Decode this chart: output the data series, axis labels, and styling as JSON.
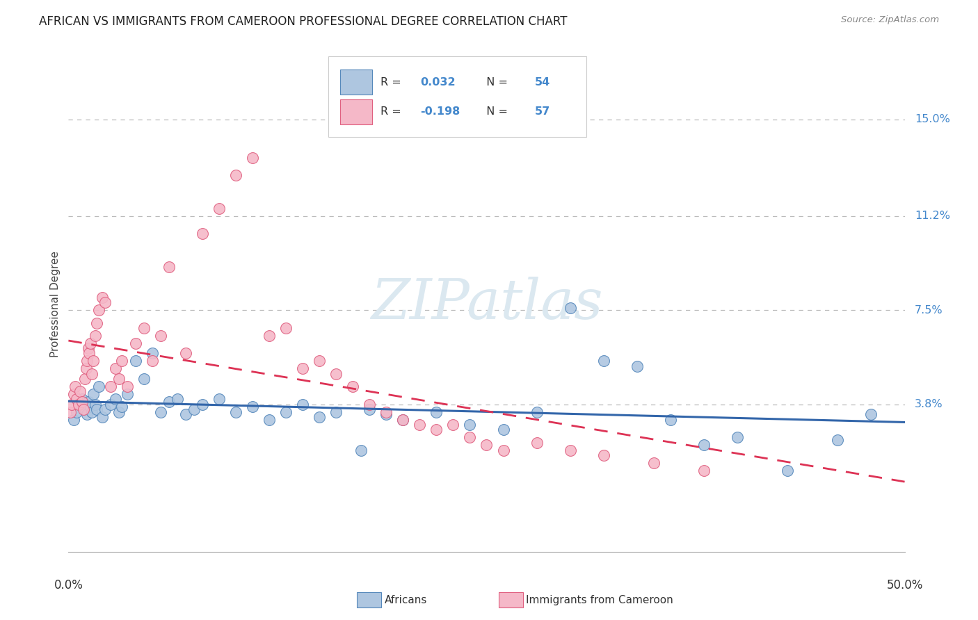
{
  "title": "AFRICAN VS IMMIGRANTS FROM CAMEROON PROFESSIONAL DEGREE CORRELATION CHART",
  "source": "Source: ZipAtlas.com",
  "ylabel": "Professional Degree",
  "ytick_labels": [
    "15.0%",
    "11.2%",
    "7.5%",
    "3.8%"
  ],
  "ytick_values": [
    15.0,
    11.2,
    7.5,
    3.8
  ],
  "xtick_labels": [
    "0.0%",
    "50.0%"
  ],
  "xlim": [
    0.0,
    50.0
  ],
  "ylim": [
    -2.0,
    17.5
  ],
  "africans_color": "#aec6e0",
  "africans_edge": "#5588bb",
  "cameroon_color": "#f5b8c8",
  "cameroon_edge": "#e06080",
  "trend_africans_color": "#3366aa",
  "trend_cameroon_color": "#dd3355",
  "watermark_color": "#dbe8f0",
  "R_africans": 0.032,
  "N_africans": 54,
  "R_cameroon": -0.198,
  "N_cameroon": 57,
  "africans_x": [
    0.3,
    0.5,
    0.7,
    0.8,
    1.0,
    1.1,
    1.2,
    1.3,
    1.4,
    1.5,
    1.6,
    1.7,
    1.8,
    2.0,
    2.2,
    2.5,
    2.8,
    3.0,
    3.2,
    3.5,
    4.0,
    4.5,
    5.0,
    5.5,
    6.0,
    6.5,
    7.0,
    7.5,
    8.0,
    9.0,
    10.0,
    11.0,
    12.0,
    13.0,
    14.0,
    15.0,
    16.0,
    17.5,
    18.0,
    19.0,
    20.0,
    22.0,
    24.0,
    26.0,
    28.0,
    30.0,
    32.0,
    34.0,
    36.0,
    38.0,
    40.0,
    43.0,
    46.0,
    48.0
  ],
  "africans_y": [
    3.2,
    3.5,
    3.8,
    4.0,
    3.6,
    3.4,
    3.9,
    3.7,
    3.5,
    4.2,
    3.8,
    3.6,
    4.5,
    3.3,
    3.6,
    3.8,
    4.0,
    3.5,
    3.7,
    4.2,
    5.5,
    4.8,
    5.8,
    3.5,
    3.9,
    4.0,
    3.4,
    3.6,
    3.8,
    4.0,
    3.5,
    3.7,
    3.2,
    3.5,
    3.8,
    3.3,
    3.5,
    2.0,
    3.6,
    3.4,
    3.2,
    3.5,
    3.0,
    2.8,
    3.5,
    7.6,
    5.5,
    5.3,
    3.2,
    2.2,
    2.5,
    1.2,
    2.4,
    3.4
  ],
  "cameroon_x": [
    0.1,
    0.2,
    0.3,
    0.4,
    0.5,
    0.6,
    0.7,
    0.8,
    0.9,
    1.0,
    1.05,
    1.1,
    1.2,
    1.25,
    1.3,
    1.4,
    1.5,
    1.6,
    1.7,
    1.8,
    2.0,
    2.2,
    2.5,
    2.8,
    3.0,
    3.2,
    3.5,
    4.0,
    4.5,
    5.0,
    5.5,
    6.0,
    7.0,
    8.0,
    9.0,
    10.0,
    11.0,
    12.0,
    13.0,
    14.0,
    15.0,
    16.0,
    17.0,
    18.0,
    19.0,
    20.0,
    21.0,
    22.0,
    23.0,
    24.0,
    25.0,
    26.0,
    28.0,
    30.0,
    32.0,
    35.0,
    38.0
  ],
  "cameroon_y": [
    3.5,
    3.8,
    4.2,
    4.5,
    4.0,
    3.8,
    4.3,
    3.9,
    3.6,
    4.8,
    5.2,
    5.5,
    6.0,
    5.8,
    6.2,
    5.0,
    5.5,
    6.5,
    7.0,
    7.5,
    8.0,
    7.8,
    4.5,
    5.2,
    4.8,
    5.5,
    4.5,
    6.2,
    6.8,
    5.5,
    6.5,
    9.2,
    5.8,
    10.5,
    11.5,
    12.8,
    13.5,
    6.5,
    6.8,
    5.2,
    5.5,
    5.0,
    4.5,
    3.8,
    3.5,
    3.2,
    3.0,
    2.8,
    3.0,
    2.5,
    2.2,
    2.0,
    2.3,
    2.0,
    1.8,
    1.5,
    1.2
  ]
}
